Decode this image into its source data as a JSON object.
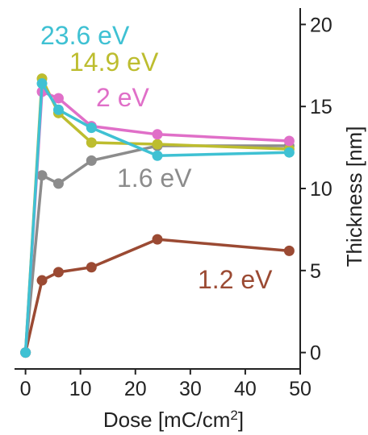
{
  "chart_data": {
    "type": "line",
    "title": "",
    "xlabel": "Dose [mC/cm",
    "xlabel_sup": "2",
    "xlabel_end": "]",
    "ylabel": "Thickness [nm]",
    "xlim": [
      -2,
      50
    ],
    "ylim": [
      -1,
      21
    ],
    "xticks": [
      0,
      10,
      20,
      30,
      40,
      50
    ],
    "yticks": [
      0,
      5,
      10,
      15,
      20
    ],
    "grid": false,
    "y_axis_side": "right",
    "legend": "inline labels",
    "series": [
      {
        "name": "23.6 eV",
        "color": "#3fc1d3",
        "x": [
          0,
          3,
          6,
          12,
          24,
          48
        ],
        "y": [
          0,
          16.4,
          14.8,
          13.7,
          12.0,
          12.2
        ]
      },
      {
        "name": "14.9 eV",
        "color": "#bdbd2f",
        "x": [
          0,
          3,
          6,
          12,
          24,
          48
        ],
        "y": [
          0,
          16.7,
          14.6,
          12.8,
          12.7,
          12.4
        ]
      },
      {
        "name": "2 eV",
        "color": "#e06fc8",
        "x": [
          0,
          3,
          6,
          12,
          24,
          48
        ],
        "y": [
          0,
          15.9,
          15.5,
          13.8,
          13.3,
          12.9
        ]
      },
      {
        "name": "1.6 eV",
        "color": "#8c8c8c",
        "x": [
          0,
          3,
          6,
          12,
          24,
          48
        ],
        "y": [
          0,
          10.8,
          10.3,
          11.7,
          12.6,
          12.6
        ]
      },
      {
        "name": "1.2 eV",
        "color": "#9b4a33",
        "x": [
          0,
          3,
          6,
          12,
          24,
          48
        ],
        "y": [
          0,
          4.4,
          4.9,
          5.2,
          6.9,
          6.2
        ]
      }
    ]
  }
}
